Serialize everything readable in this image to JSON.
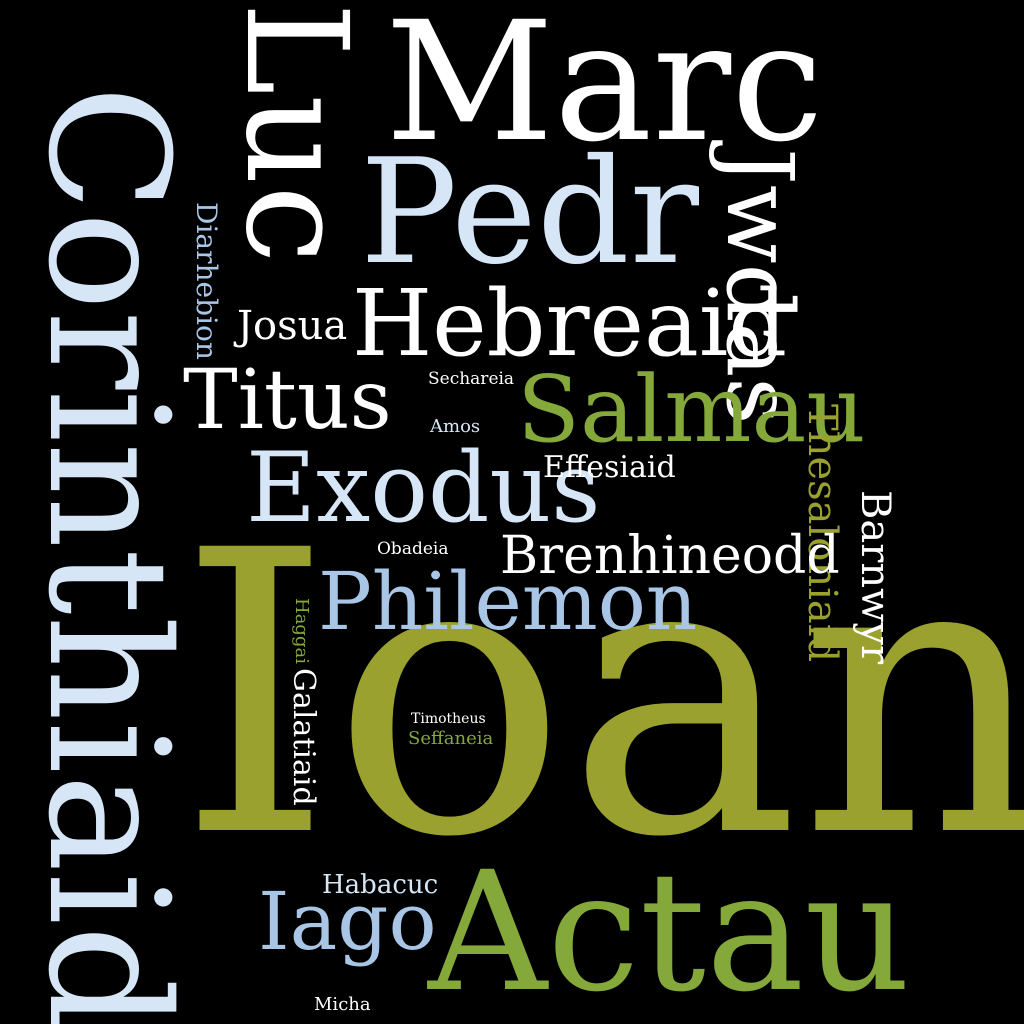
{
  "colors": {
    "background": "#000000",
    "white": "#ffffff",
    "light_blue": "#d6e6f7",
    "mid_blue": "#a9c6e6",
    "olive": "#9aa12e",
    "green": "#84a83a"
  },
  "words": {
    "ioan": "Ioan",
    "corinthiaid": "Corinthiaid",
    "marc": "Marc",
    "luc": "Luc",
    "pedr": "Pedr",
    "actau": "Actau",
    "jwdas": "Jwdas",
    "hebreaid": "Hebreaid",
    "titus": "Titus",
    "salmau": "Salmau",
    "exodus": "Exodus",
    "philemon": "Philemon",
    "brenhineodd": "Brenhineodd",
    "iago": "Iago",
    "thesaloniaid": "Thesaloniaid",
    "barnwyr": "Barnwyr",
    "galatiaid": "Galatiaid",
    "josua": "Josua",
    "diarhebion": "Diarhebion",
    "effesiaid": "Effesiaid",
    "habacuc": "Habacuc",
    "sechareia": "Sechareia",
    "amos": "Amos",
    "obadeia": "Obadeia",
    "timotheus": "Timotheus",
    "seffaneia": "Seffaneia",
    "haggai": "Haggai",
    "micha": "Micha"
  }
}
